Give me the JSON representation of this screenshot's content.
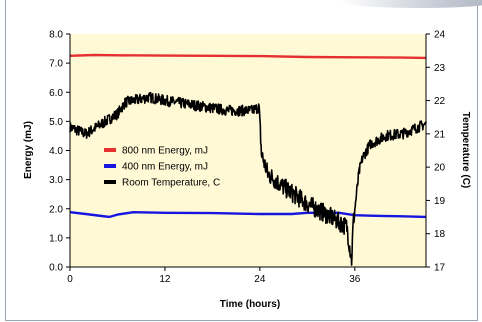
{
  "chart_data": {
    "type": "line",
    "xlabel": "Time (hours)",
    "ylabel": "Energy (mJ)",
    "y2label": "Temperature (C)",
    "xlim": [
      0,
      45
    ],
    "ylim": [
      0,
      8
    ],
    "y2lim": [
      17,
      24
    ],
    "x_ticks": [
      "0",
      "12",
      "24",
      "36"
    ],
    "y_ticks": [
      "0.0",
      "1.0",
      "2.0",
      "3.0",
      "4.0",
      "5.0",
      "6.0",
      "7.0",
      "8.0"
    ],
    "y2_ticks": [
      "17",
      "18",
      "19",
      "20",
      "21",
      "22",
      "23",
      "24"
    ],
    "grid": false,
    "legend_position": "center-left",
    "background": "#fff9d6",
    "series": [
      {
        "name": "800 nm Energy, mJ",
        "axis": "left",
        "color": "#e53030",
        "x": [
          0,
          3,
          6,
          12,
          18,
          24,
          30,
          36,
          42,
          45
        ],
        "y": [
          7.25,
          7.28,
          7.27,
          7.26,
          7.25,
          7.24,
          7.21,
          7.2,
          7.19,
          7.18
        ]
      },
      {
        "name": "400 nm Energy, mJ",
        "axis": "left",
        "color": "#1616e0",
        "x": [
          0,
          2,
          4,
          5,
          6,
          8,
          12,
          18,
          24,
          28,
          30,
          34,
          36,
          38,
          42,
          45
        ],
        "y": [
          1.88,
          1.82,
          1.75,
          1.72,
          1.8,
          1.88,
          1.86,
          1.85,
          1.82,
          1.82,
          1.86,
          1.86,
          1.78,
          1.76,
          1.74,
          1.72
        ]
      },
      {
        "name": "Room Temperature, C",
        "axis": "right",
        "color": "#000000",
        "x": [
          0,
          2,
          4,
          6,
          7,
          8,
          10,
          12,
          16,
          20,
          23,
          23.9,
          24.2,
          25,
          27,
          30,
          33,
          35,
          35.6,
          35.8,
          36.5,
          37,
          38,
          40,
          42,
          45
        ],
        "y": [
          21.2,
          21.0,
          21.3,
          21.6,
          21.95,
          22.0,
          22.1,
          22.0,
          21.85,
          21.7,
          21.7,
          21.8,
          20.4,
          19.8,
          19.4,
          18.9,
          18.5,
          18.2,
          17.2,
          18.3,
          19.8,
          20.3,
          20.7,
          20.95,
          21.0,
          21.3
        ]
      }
    ]
  }
}
